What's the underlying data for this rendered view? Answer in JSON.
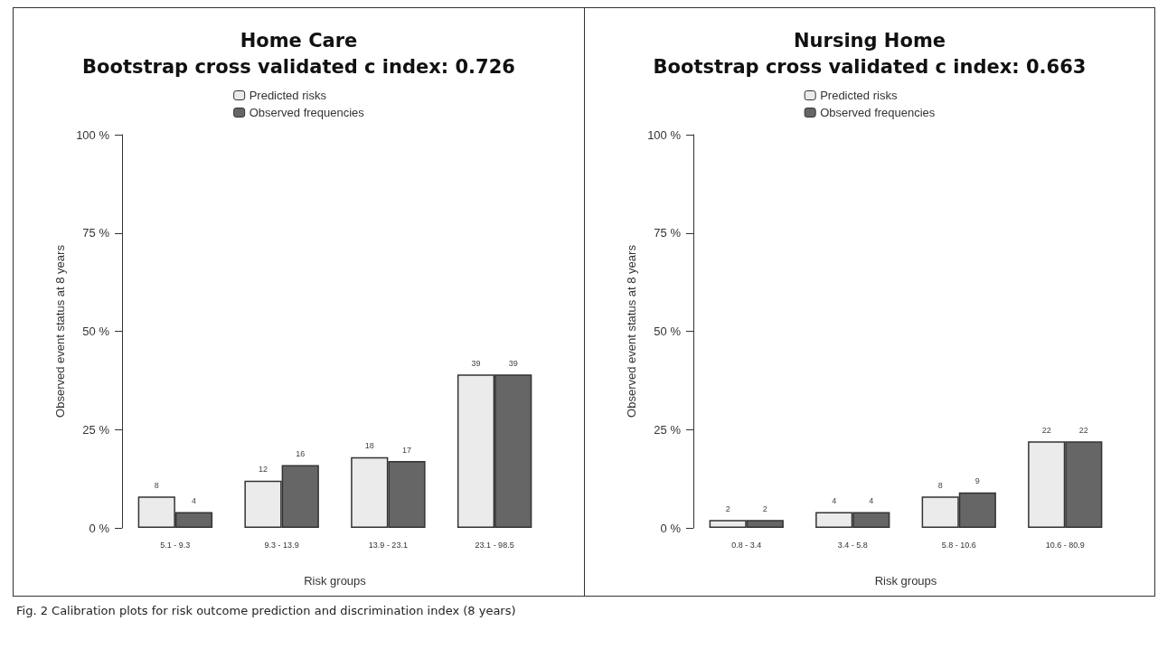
{
  "chart_data": [
    {
      "type": "bar",
      "title": "Home Care",
      "subtitle": "Bootstrap cross validated c index: 0.726",
      "xlabel": "Risk groups",
      "ylabel": "Observed event status at 8 years",
      "categories": [
        "5.1 - 9.3",
        "9.3 - 13.9",
        "13.9 - 23.1",
        "23.1 - 98.5"
      ],
      "series": [
        {
          "name": "Predicted risks",
          "color": "#ebebeb",
          "values": [
            8,
            12,
            18,
            39
          ]
        },
        {
          "name": "Observed frequencies",
          "color": "#666666",
          "values": [
            4,
            16,
            17,
            39
          ]
        }
      ],
      "ylim": [
        0,
        100
      ],
      "yticks": [
        {
          "value": 0,
          "label": "0 %"
        },
        {
          "value": 25,
          "label": "25 %"
        },
        {
          "value": 50,
          "label": "50 %"
        },
        {
          "value": 75,
          "label": "75 %"
        },
        {
          "value": 100,
          "label": "100 %"
        }
      ],
      "data_labels": true,
      "grid": false,
      "legend": "top",
      "annotations": [
        "Fig. 2 Calibration plots for risk outcome prediction and discrimination index (8 years)"
      ]
    },
    {
      "type": "bar",
      "title": "Nursing Home",
      "subtitle": "Bootstrap cross validated c index: 0.663",
      "xlabel": "Risk groups",
      "ylabel": "Observed event status at 8 years",
      "categories": [
        "0.8 - 3.4",
        "3.4 - 5.8",
        "5.8 - 10.6",
        "10.6 - 80.9"
      ],
      "series": [
        {
          "name": "Predicted risks",
          "color": "#ebebeb",
          "values": [
            2,
            4,
            8,
            22
          ]
        },
        {
          "name": "Observed frequencies",
          "color": "#666666",
          "values": [
            2,
            4,
            9,
            22
          ]
        }
      ],
      "ylim": [
        0,
        100
      ],
      "yticks": [
        {
          "value": 0,
          "label": "0 %"
        },
        {
          "value": 25,
          "label": "25 %"
        },
        {
          "value": 50,
          "label": "50 %"
        },
        {
          "value": 75,
          "label": "75 %"
        },
        {
          "value": 100,
          "label": "100 %"
        }
      ],
      "data_labels": true,
      "grid": false,
      "legend": "top"
    }
  ]
}
